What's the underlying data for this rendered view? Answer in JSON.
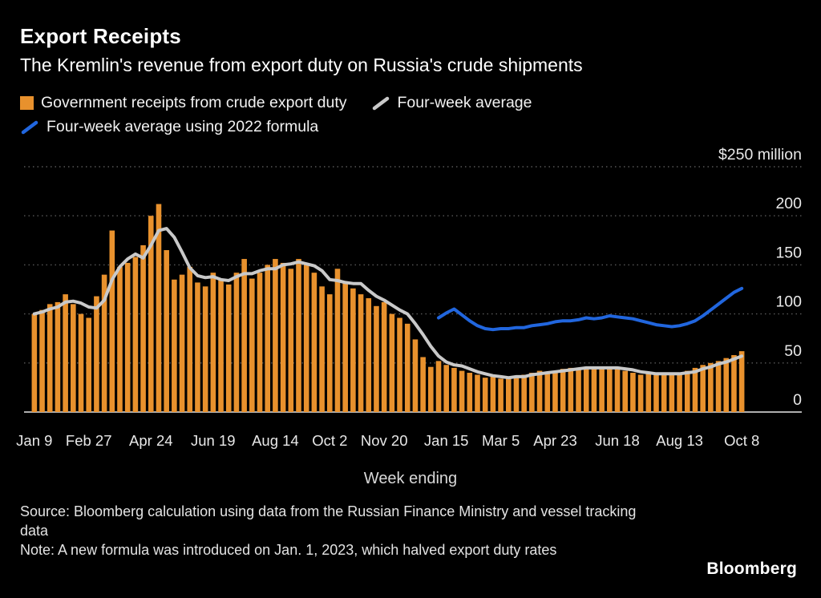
{
  "header": {
    "title": "Export Receipts",
    "subtitle": "The Kremlin's revenue from export duty on Russia's crude shipments"
  },
  "legend": [
    {
      "type": "square",
      "color": "#E8912D",
      "label": "Government receipts from crude export duty"
    },
    {
      "type": "line",
      "color": "#C9C9C9",
      "label": "Four-week average"
    },
    {
      "type": "line",
      "color": "#2166DE",
      "label": "Four-week average using 2022 formula"
    }
  ],
  "footer": {
    "source": "Source: Bloomberg calculation using data from the Russian Finance Ministry and vessel tracking data",
    "note": "Note: A new formula was introduced on Jan. 1, 2023, which halved export duty rates",
    "logo": "Bloomberg"
  },
  "chart_data": {
    "type": "bar",
    "title": "Export Receipts",
    "xlabel": "Week ending",
    "ylabel": "$ million",
    "ylim": [
      0,
      250
    ],
    "grid": "horizontal-dotted",
    "legend_position": "top",
    "colors": {
      "background": "#000000",
      "gridline": "#575757",
      "axis_line": "#e8e8e8",
      "tick_text": "#e8e8e8"
    },
    "yticks": [
      {
        "value": 0,
        "label": "0"
      },
      {
        "value": 50,
        "label": "50"
      },
      {
        "value": 100,
        "label": "100"
      },
      {
        "value": 150,
        "label": "150"
      },
      {
        "value": 200,
        "label": "200"
      },
      {
        "value": 250,
        "label": "$250 million"
      }
    ],
    "xticks": [
      {
        "index": 0,
        "label": "Jan 9"
      },
      {
        "index": 7,
        "label": "Feb 27"
      },
      {
        "index": 15,
        "label": "Apr 24"
      },
      {
        "index": 23,
        "label": "Jun 19"
      },
      {
        "index": 31,
        "label": "Aug 14"
      },
      {
        "index": 38,
        "label": "Oct 2"
      },
      {
        "index": 45,
        "label": "Nov 20"
      },
      {
        "index": 53,
        "label": "Jan 15"
      },
      {
        "index": 60,
        "label": "Mar 5"
      },
      {
        "index": 67,
        "label": "Apr 23"
      },
      {
        "index": 75,
        "label": "Jun 18"
      },
      {
        "index": 83,
        "label": "Aug 13"
      },
      {
        "index": 91,
        "label": "Oct 8"
      }
    ],
    "series": [
      {
        "key": "receipts",
        "name": "Government receipts from crude export duty",
        "type": "bar",
        "color": "#E8912D",
        "start_index": 0,
        "values": [
          100,
          104,
          110,
          112,
          120,
          110,
          100,
          96,
          118,
          140,
          185,
          148,
          152,
          158,
          170,
          200,
          212,
          165,
          135,
          140,
          148,
          132,
          128,
          142,
          136,
          130,
          142,
          156,
          136,
          142,
          150,
          156,
          152,
          146,
          156,
          150,
          142,
          128,
          120,
          146,
          132,
          126,
          120,
          116,
          108,
          112,
          100,
          96,
          90,
          74,
          56,
          46,
          52,
          48,
          45,
          42,
          40,
          38,
          35,
          36,
          34,
          35,
          37,
          38,
          40,
          42,
          40,
          42,
          44,
          45,
          43,
          46,
          44,
          46,
          45,
          44,
          42,
          40,
          38,
          40,
          38,
          40,
          38,
          40,
          42,
          45,
          48,
          50,
          52,
          55,
          58,
          62
        ]
      },
      {
        "key": "four-week-average",
        "name": "Four-week average",
        "type": "line",
        "color": "#C9C9C9",
        "start_index": 0,
        "values": [
          100,
          102,
          105,
          107,
          112,
          113,
          111,
          107,
          106,
          114,
          135,
          148,
          156,
          161,
          157,
          170,
          185,
          187,
          178,
          163,
          147,
          139,
          137,
          138,
          135,
          134,
          138,
          141,
          141,
          144,
          146,
          146,
          150,
          151,
          153,
          151,
          149,
          144,
          135,
          134,
          132,
          131,
          131,
          124,
          118,
          114,
          109,
          104,
          100,
          90,
          79,
          67,
          57,
          51,
          48,
          47,
          44,
          41,
          39,
          37,
          36,
          35,
          36,
          36,
          38,
          39,
          40,
          41,
          42,
          43,
          44,
          45,
          45,
          45,
          45,
          45,
          44,
          43,
          41,
          40,
          39,
          39,
          39,
          39,
          40,
          41,
          44,
          46,
          49,
          51,
          54,
          57
        ]
      },
      {
        "key": "2022-formula-average",
        "name": "Four-week average using 2022 formula",
        "type": "line",
        "color": "#2166DE",
        "start_index": 52,
        "values": [
          96,
          101,
          105,
          99,
          93,
          88,
          85,
          84,
          85,
          85,
          86,
          86,
          88,
          89,
          90,
          92,
          93,
          93,
          94,
          96,
          95,
          96,
          98,
          97,
          96,
          95,
          93,
          91,
          89,
          88,
          87,
          88,
          90,
          93,
          98,
          104,
          110,
          116,
          122,
          126
        ]
      }
    ]
  }
}
